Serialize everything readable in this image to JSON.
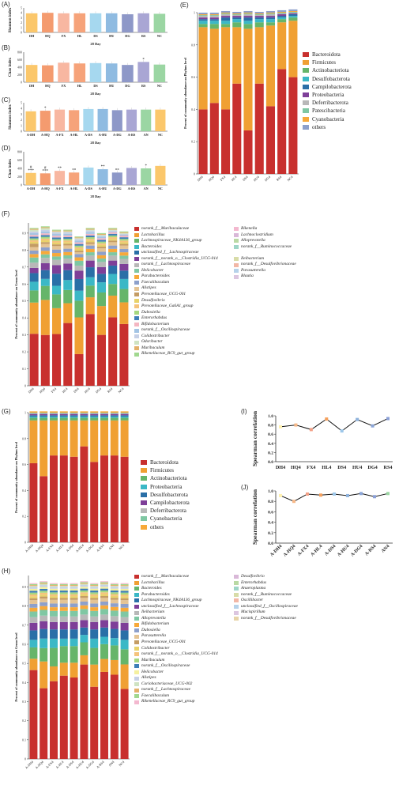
{
  "panels": {
    "A": "(A)",
    "B": "(B)",
    "C": "(C)",
    "D": "(D)",
    "E": "(E)",
    "F": "(F)",
    "G": "(G)",
    "H": "(H)",
    "I": "(I)",
    "J": "(J)"
  },
  "colors": {
    "phylum": [
      "#c8302e",
      "#f0a033",
      "#66b56a",
      "#3bb8c6",
      "#2a6fa7",
      "#7e3f98",
      "#b8b8b8",
      "#7fc7a3",
      "#f7a93a",
      "#8da0cb"
    ],
    "bar_small": [
      "#fbc76b",
      "#f49b6f",
      "#f8b7a1",
      "#f6a37a",
      "#a6d8ef",
      "#8fbbe1",
      "#8e98c8",
      "#a9a6d4",
      "#9bd6a3"
    ]
  },
  "small_charts": [
    {
      "id": "A",
      "ylabel": "Shannon index",
      "xlabel": "28 Day",
      "type": "bar",
      "categories": [
        "DH",
        "HQ",
        "FX",
        "HL",
        "DS",
        "HU",
        "DG",
        "RS",
        "NC"
      ],
      "values": [
        3.9,
        4.0,
        3.9,
        3.9,
        3.9,
        3.9,
        3.7,
        3.9,
        3.8
      ],
      "ylim": [
        0,
        5
      ],
      "ticks": [
        "0",
        "1",
        "2",
        "3",
        "4",
        "5"
      ],
      "marks": [
        "",
        "",
        "",
        "",
        "",
        "",
        "",
        "",
        ""
      ]
    },
    {
      "id": "B",
      "ylabel": "Chao index",
      "xlabel": "28 Day",
      "type": "bar",
      "categories": [
        "DH",
        "HQ",
        "FX",
        "HL",
        "DS",
        "HU",
        "DG",
        "RS",
        "NC"
      ],
      "values": [
        460,
        450,
        520,
        500,
        510,
        500,
        460,
        540,
        470
      ],
      "ylim": [
        0,
        800
      ],
      "ticks": [
        "0",
        "200",
        "400",
        "600",
        "800"
      ],
      "marks": [
        "",
        "",
        "",
        "",
        "",
        "",
        "",
        "*",
        ""
      ]
    },
    {
      "id": "C",
      "ylabel": "Shannon index",
      "xlabel": "28 Day",
      "type": "bar",
      "categories": [
        "A-DH",
        "A-HQ",
        "A-FX",
        "A-HL",
        "A-DS",
        "A-HU",
        "A-DG",
        "A-RS",
        "AN",
        "NC"
      ],
      "values": [
        3.5,
        3.6,
        3.8,
        3.7,
        3.9,
        3.9,
        3.7,
        3.8,
        3.8,
        3.8
      ],
      "ylim": [
        0,
        5
      ],
      "ticks": [
        "0",
        "1",
        "2",
        "3",
        "4",
        "5"
      ],
      "marks": [
        "",
        "*",
        "",
        "",
        "",
        "",
        "",
        "",
        "",
        ""
      ]
    },
    {
      "id": "D",
      "ylabel": "Chao index",
      "xlabel": "28 Day",
      "type": "bar",
      "categories": [
        "A-DH",
        "A-HQ",
        "A-FX",
        "A-HL",
        "A-DS",
        "A-HU",
        "A-DG",
        "A-RS",
        "AN",
        "NC"
      ],
      "values": [
        290,
        280,
        340,
        300,
        420,
        380,
        300,
        410,
        400,
        460
      ],
      "ylim": [
        0,
        800
      ],
      "ticks": [
        "0",
        "200",
        "400",
        "600",
        "800"
      ],
      "marks": [
        "#\n***",
        "#\n***",
        "**",
        "**",
        "",
        "**",
        "**",
        "",
        "*",
        ""
      ]
    }
  ],
  "E": {
    "type": "bar",
    "ylabel": "Percent of community abundance on Phylum level",
    "categories": [
      "DH4",
      "HQ4",
      "FX4",
      "HL4",
      "DS4",
      "HU4",
      "DG4",
      "RS4",
      "NC4"
    ],
    "yticks": [
      "0",
      "0.2",
      "0.4",
      "0.6",
      "0.8",
      "1"
    ],
    "series": [
      {
        "name": "Bacteroidota",
        "values": [
          0.4,
          0.44,
          0.4,
          0.56,
          0.27,
          0.56,
          0.42,
          0.65,
          0.6
        ]
      },
      {
        "name": "Firmicutes",
        "values": [
          0.51,
          0.46,
          0.51,
          0.35,
          0.63,
          0.35,
          0.5,
          0.29,
          0.35
        ]
      },
      {
        "name": "Actinobacteriota",
        "values": [
          0.02,
          0.03,
          0.02,
          0.03,
          0.03,
          0.03,
          0.02,
          0.02,
          0.02
        ]
      },
      {
        "name": "Desulfobacterota",
        "values": [
          0.02,
          0.02,
          0.02,
          0.02,
          0.02,
          0.02,
          0.02,
          0.01,
          0.01
        ]
      },
      {
        "name": "Campilobacterota",
        "values": [
          0.01,
          0.01,
          0.02,
          0.01,
          0.02,
          0.01,
          0.01,
          0.01,
          0.01
        ]
      },
      {
        "name": "Proteobacteria",
        "values": [
          0.01,
          0.01,
          0.01,
          0.01,
          0.01,
          0.01,
          0.01,
          0.01,
          0.005
        ]
      },
      {
        "name": "Deferribacterota",
        "values": [
          0.01,
          0.01,
          0.01,
          0.005,
          0.01,
          0.005,
          0.01,
          0.005,
          0.005
        ]
      },
      {
        "name": "Patescibacteria",
        "values": [
          0.005,
          0.005,
          0.005,
          0.005,
          0.005,
          0.005,
          0.005,
          0.005,
          0.005
        ]
      },
      {
        "name": "Cyanobacteria",
        "values": [
          0.005,
          0.005,
          0.005,
          0.005,
          0.005,
          0.005,
          0.005,
          0.005,
          0.005
        ]
      },
      {
        "name": "others",
        "values": [
          0.01,
          0.01,
          0.01,
          0.01,
          0.01,
          0.01,
          0.01,
          0.01,
          0.01
        ]
      }
    ]
  },
  "F": {
    "type": "bar",
    "ylabel": "Percent of community abundance on Genus level",
    "categories": [
      "DH4",
      "HQ4",
      "FX4",
      "HL4",
      "DS4",
      "HU4",
      "DG4",
      "RS4",
      "NC4"
    ],
    "yticks": [
      "0",
      "0.1",
      "0.2",
      "0.3",
      "0.4",
      "0.5",
      "0.6",
      "0.7",
      "0.8",
      "0.9"
    ],
    "legend_left": [
      "norank_f__Muribaculaceae",
      "Lactobacillus",
      "Lachnospiraceae_NK4A136_group",
      "Bacteroides",
      "unclassified_f__Lachnospiraceae",
      "norank_f__norank_o__Clostridia_UCG-014",
      "norank_f__Lachnospiraceae",
      "Helicobacter",
      "Parabacteroides",
      "Faecalibaculum",
      "Alistipes",
      "Prevotellaceae_UCG-001",
      "Desulfovibrio",
      "Prevotellaceae_Ga6A1_group",
      "Dubosiella",
      "Enterorhabdus",
      "Bifidobacterium",
      "norank_f__Oscillospiraceae",
      "Colidextribacter",
      "Odoribacter",
      "Muribaculum",
      "Rikenellaceae_RC9_gut_group"
    ],
    "legend_right": [
      "Rikenella",
      "Lachnoclostridium",
      "Alloprevotella",
      "norank_f__Ruminococcaceae",
      "",
      "Ileibacterium",
      "norank_f__Desulfovibrionaceae",
      "Parasutterella",
      "Blautia"
    ],
    "colors": [
      "#c8302e",
      "#f0a033",
      "#66b56a",
      "#3bb8c6",
      "#2a6fa7",
      "#7e3f98",
      "#b8b8b8",
      "#7fc7a3",
      "#f7a93a",
      "#8da0cb",
      "#e5c494",
      "#c49c64",
      "#e8d26a",
      "#f5c37c",
      "#a5d77f",
      "#3f7fb8",
      "#f4b6c2",
      "#a3c4e4",
      "#c6d0e6",
      "#cfe3c2",
      "#e4b16a",
      "#a1d88f",
      "#f3b8cf",
      "#d9b8d8",
      "#b9d9a4",
      "#9ed5c7",
      "#ffffff",
      "#d8dca8",
      "#f2b7a6",
      "#b6d2ea",
      "#dcc6e0"
    ],
    "totals": [
      0.93,
      0.94,
      0.92,
      0.92,
      0.88,
      0.93,
      0.9,
      0.93,
      0.91
    ],
    "fractions": [
      [
        0.3,
        0.18,
        0.07,
        0.05,
        0.05,
        0.03,
        0.03,
        0.03,
        0.02,
        0.02,
        0.02,
        0.02,
        0.01,
        0.01,
        0.01,
        0.01,
        0.01,
        0.01,
        0.01,
        0.01,
        0.005,
        0.005
      ],
      [
        0.29,
        0.2,
        0.08,
        0.04,
        0.05,
        0.04,
        0.03,
        0.02,
        0.02,
        0.02,
        0.02,
        0.01,
        0.01,
        0.01,
        0.01,
        0.01,
        0.01,
        0.01,
        0.01,
        0.01,
        0.005,
        0.005
      ],
      [
        0.3,
        0.15,
        0.08,
        0.05,
        0.07,
        0.05,
        0.03,
        0.02,
        0.02,
        0.02,
        0.02,
        0.01,
        0.01,
        0.01,
        0.01,
        0.01,
        0.01,
        0.01,
        0.01,
        0.005,
        0.005,
        0.005
      ],
      [
        0.38,
        0.12,
        0.08,
        0.06,
        0.06,
        0.04,
        0.03,
        0.02,
        0.02,
        0.02,
        0.02,
        0.01,
        0.01,
        0.01,
        0.01,
        0.01,
        0.01,
        0.01,
        0.01,
        0.005,
        0.005,
        0.005
      ],
      [
        0.19,
        0.22,
        0.1,
        0.06,
        0.07,
        0.05,
        0.03,
        0.03,
        0.02,
        0.02,
        0.01,
        0.01,
        0.01,
        0.01,
        0.01,
        0.01,
        0.01,
        0.01,
        0.01,
        0.005,
        0.005,
        0.005
      ],
      [
        0.43,
        0.1,
        0.07,
        0.05,
        0.06,
        0.04,
        0.03,
        0.02,
        0.02,
        0.02,
        0.01,
        0.01,
        0.01,
        0.01,
        0.01,
        0.01,
        0.01,
        0.01,
        0.01,
        0.005,
        0.005,
        0.005
      ],
      [
        0.3,
        0.17,
        0.08,
        0.06,
        0.05,
        0.04,
        0.03,
        0.02,
        0.02,
        0.02,
        0.02,
        0.01,
        0.01,
        0.01,
        0.01,
        0.01,
        0.01,
        0.01,
        0.005,
        0.005,
        0.005,
        0.005
      ],
      [
        0.41,
        0.13,
        0.07,
        0.06,
        0.05,
        0.03,
        0.03,
        0.02,
        0.02,
        0.02,
        0.02,
        0.01,
        0.01,
        0.01,
        0.01,
        0.01,
        0.01,
        0.005,
        0.005,
        0.005,
        0.005,
        0.005
      ],
      [
        0.37,
        0.13,
        0.08,
        0.06,
        0.05,
        0.04,
        0.03,
        0.02,
        0.02,
        0.02,
        0.02,
        0.01,
        0.01,
        0.01,
        0.01,
        0.01,
        0.01,
        0.005,
        0.005,
        0.005,
        0.005,
        0.005
      ]
    ]
  },
  "G": {
    "type": "bar",
    "ylabel": "Percent of community abundance on Phylum level",
    "categories": [
      "A-DH4",
      "A-HQ4",
      "A-FX4",
      "A-HL4",
      "A-DS4",
      "A-HU4",
      "A-DG4",
      "A-RS4",
      "AN4",
      "NC4"
    ],
    "yticks": [
      "0",
      "0.2",
      "0.4",
      "0.6",
      "0.8",
      "1"
    ],
    "legend": [
      "Bacteroidota",
      "Firmicutes",
      "Actinobacteriota",
      "Proteobacteria",
      "Desulfobacterota",
      "Campilobacterota",
      "Deferribacterota",
      "Cyanobacteria",
      "others"
    ],
    "colors": [
      "#c8302e",
      "#f0a033",
      "#66b56a",
      "#3bb8c6",
      "#2a6fa7",
      "#7e3f98",
      "#b8b8b8",
      "#7fc7a3",
      "#f7a93a"
    ],
    "stacks": [
      [
        0.61,
        0.33,
        0.02,
        0.01,
        0.01,
        0.01,
        0.005,
        0.005,
        0.01
      ],
      [
        0.51,
        0.43,
        0.02,
        0.01,
        0.01,
        0.01,
        0.005,
        0.005,
        0.01
      ],
      [
        0.67,
        0.27,
        0.02,
        0.01,
        0.01,
        0.01,
        0.005,
        0.005,
        0.01
      ],
      [
        0.67,
        0.27,
        0.02,
        0.01,
        0.01,
        0.01,
        0.005,
        0.005,
        0.01
      ],
      [
        0.66,
        0.28,
        0.02,
        0.01,
        0.01,
        0.01,
        0.005,
        0.005,
        0.01
      ],
      [
        0.74,
        0.2,
        0.02,
        0.01,
        0.01,
        0.01,
        0.005,
        0.005,
        0.01
      ],
      [
        0.62,
        0.32,
        0.02,
        0.01,
        0.01,
        0.01,
        0.005,
        0.005,
        0.01
      ],
      [
        0.67,
        0.27,
        0.02,
        0.01,
        0.01,
        0.01,
        0.005,
        0.005,
        0.01
      ],
      [
        0.67,
        0.27,
        0.02,
        0.01,
        0.01,
        0.01,
        0.005,
        0.005,
        0.01
      ],
      [
        0.66,
        0.28,
        0.02,
        0.01,
        0.01,
        0.01,
        0.005,
        0.005,
        0.01
      ]
    ]
  },
  "H": {
    "type": "bar",
    "ylabel": "Percent of community abundance on Genus level",
    "categories": [
      "A-DH4",
      "A-HQ4",
      "A-FX4",
      "A-HL4",
      "A-DS4",
      "A-HU4",
      "A-DG4",
      "A-RS4",
      "AN4",
      "NC4"
    ],
    "yticks": [
      "0",
      "0.1",
      "0.2",
      "0.3",
      "0.4",
      "0.5",
      "0.6",
      "0.7",
      "0.8",
      "0.9"
    ],
    "legend_left": [
      "norank_f__Muribaculaceae",
      "Lactobacillus",
      "Bacteroides",
      "Parabacteroides",
      "Lachnospiraceae_NK4A136_group",
      "unclassified_f__Lachnospiraceae",
      "Ileibacterium",
      "Alloprevotella",
      "Bifidobacterium",
      "Dubosiella",
      "Parasutterella",
      "Prevotellaceae_UCG-001",
      "Colidextribacter",
      "norank_f__norank_o__Clostridia_UCG-014",
      "Muribaculum",
      "norank_f__Oscillospiraceae",
      "Helicobacter",
      "Alistipes",
      "Coriobacteriaceae_UCG-002",
      "norank_f__Lachnospiraceae",
      "Faecalibaculum",
      "Rikenellaceae_RC9_gut_group"
    ],
    "legend_right": [
      "Desulfovibrio",
      "Enterorhabdus",
      "Anaeroplasma",
      "norank_f__Ruminococcaceae",
      "Oscillibacter",
      "unclassified_f__Oscillospiraceae",
      "Mucispirillum",
      "norank_f__Desulfovibrionaceae"
    ],
    "colors": [
      "#c8302e",
      "#f0a033",
      "#66b56a",
      "#3bb8c6",
      "#2a6fa7",
      "#7e3f98",
      "#b8b8b8",
      "#7fc7a3",
      "#f7a93a",
      "#8da0cb",
      "#e5c494",
      "#c49c64",
      "#e8d26a",
      "#f5c37c",
      "#a5d77f",
      "#3f7fb8",
      "#f4f0a0",
      "#c6d0e6",
      "#cfe3c2",
      "#e4b16a",
      "#a1d88f",
      "#f3b8cf",
      "#d9b8d8",
      "#b9d9a4",
      "#9ed5c7",
      "#d8dca8",
      "#f2b7a6",
      "#b6d2ea",
      "#dcc6e0",
      "#e7d4a8"
    ],
    "totals": [
      0.92,
      0.93,
      0.92,
      0.92,
      0.92,
      0.93,
      0.92,
      0.93,
      0.92,
      0.92
    ],
    "fractions": [
      [
        0.47,
        0.06,
        0.06,
        0.04,
        0.05,
        0.04,
        0.03,
        0.03,
        0.02,
        0.02,
        0.02,
        0.01,
        0.01,
        0.01,
        0.01,
        0.01,
        0.01,
        0.01,
        0.005,
        0.005,
        0.005,
        0.005
      ],
      [
        0.37,
        0.14,
        0.07,
        0.05,
        0.05,
        0.04,
        0.03,
        0.03,
        0.02,
        0.02,
        0.02,
        0.01,
        0.01,
        0.01,
        0.01,
        0.01,
        0.01,
        0.01,
        0.005,
        0.005,
        0.005,
        0.005
      ],
      [
        0.42,
        0.08,
        0.1,
        0.05,
        0.05,
        0.04,
        0.03,
        0.03,
        0.02,
        0.02,
        0.02,
        0.01,
        0.01,
        0.01,
        0.01,
        0.01,
        0.01,
        0.01,
        0.005,
        0.005,
        0.005,
        0.005
      ],
      [
        0.45,
        0.07,
        0.09,
        0.04,
        0.05,
        0.04,
        0.03,
        0.03,
        0.02,
        0.02,
        0.02,
        0.01,
        0.01,
        0.01,
        0.01,
        0.01,
        0.01,
        0.01,
        0.005,
        0.005,
        0.005,
        0.005
      ],
      [
        0.44,
        0.08,
        0.09,
        0.04,
        0.05,
        0.04,
        0.03,
        0.03,
        0.02,
        0.02,
        0.02,
        0.01,
        0.01,
        0.01,
        0.01,
        0.01,
        0.01,
        0.01,
        0.005,
        0.005,
        0.005,
        0.005
      ],
      [
        0.51,
        0.05,
        0.07,
        0.04,
        0.04,
        0.04,
        0.03,
        0.03,
        0.02,
        0.02,
        0.02,
        0.01,
        0.01,
        0.01,
        0.01,
        0.01,
        0.01,
        0.01,
        0.005,
        0.005,
        0.005,
        0.005
      ],
      [
        0.39,
        0.12,
        0.09,
        0.05,
        0.05,
        0.04,
        0.03,
        0.03,
        0.02,
        0.02,
        0.02,
        0.01,
        0.01,
        0.01,
        0.01,
        0.01,
        0.01,
        0.01,
        0.005,
        0.005,
        0.005,
        0.005
      ],
      [
        0.47,
        0.07,
        0.08,
        0.04,
        0.05,
        0.04,
        0.03,
        0.03,
        0.02,
        0.02,
        0.02,
        0.01,
        0.01,
        0.01,
        0.01,
        0.01,
        0.01,
        0.01,
        0.005,
        0.005,
        0.005,
        0.005
      ],
      [
        0.46,
        0.08,
        0.08,
        0.04,
        0.05,
        0.04,
        0.03,
        0.03,
        0.02,
        0.02,
        0.02,
        0.01,
        0.01,
        0.01,
        0.01,
        0.01,
        0.01,
        0.01,
        0.005,
        0.005,
        0.005,
        0.005
      ],
      [
        0.37,
        0.13,
        0.08,
        0.05,
        0.05,
        0.04,
        0.03,
        0.03,
        0.02,
        0.02,
        0.02,
        0.01,
        0.01,
        0.01,
        0.01,
        0.01,
        0.01,
        0.01,
        0.005,
        0.005,
        0.005,
        0.005
      ]
    ]
  },
  "I": {
    "type": "line",
    "ylabel": "Spearman correlation",
    "categories": [
      "DH4",
      "HQ4",
      "FX4",
      "HL4",
      "DS4",
      "HU4",
      "DG4",
      "RS4"
    ],
    "values": [
      0.76,
      0.8,
      0.7,
      0.93,
      0.67,
      0.92,
      0.78,
      0.94
    ],
    "yticks": [
      "0.0",
      "0.2",
      "0.4",
      "0.6",
      "0.8",
      "1.0"
    ],
    "ylim": [
      0,
      1
    ]
  },
  "J": {
    "type": "line",
    "ylabel": "Spearman correlation",
    "categories": [
      "A-DH4",
      "A-HQ4",
      "A-FX4",
      "A-HL4",
      "A-DS4",
      "A-HU4",
      "A-DG4",
      "A-RS4",
      "AN4"
    ],
    "values": [
      0.91,
      0.8,
      0.94,
      0.92,
      0.94,
      0.91,
      0.95,
      0.89,
      0.95
    ],
    "yticks": [
      "0.0",
      "0.2",
      "0.4",
      "0.6",
      "0.8",
      "1.0"
    ],
    "ylim": [
      0,
      1
    ]
  },
  "point_colors": [
    "#fff2b0",
    "#f7b887",
    "#f29f86",
    "#f5a05c",
    "#9dc7ea",
    "#8fb3dd",
    "#8ca6d8",
    "#8a9fd6",
    "#9bd6a3"
  ]
}
